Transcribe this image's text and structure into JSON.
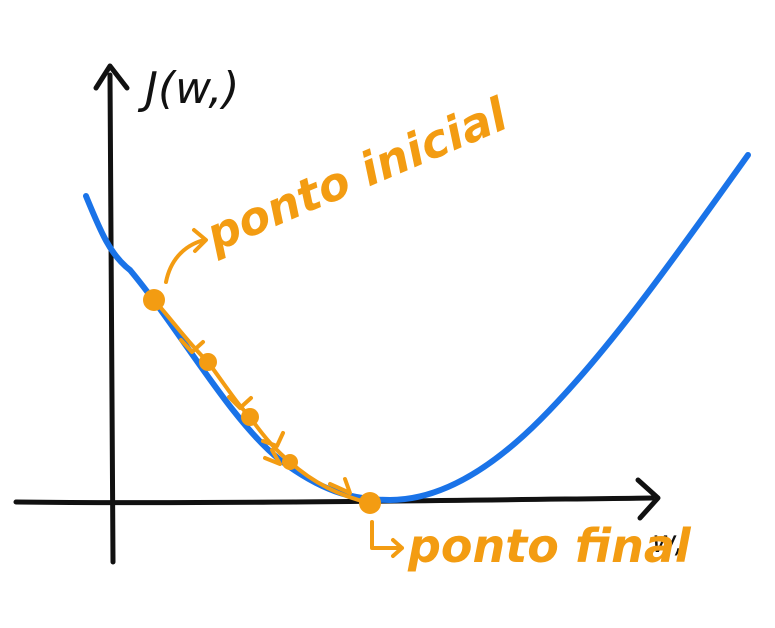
{
  "labels": {
    "y_axis": "J(w,)",
    "x_axis": "w,",
    "start": "ponto inicial",
    "end": "ponto final"
  },
  "colors": {
    "axis": "#111111",
    "curve": "#1a73e8",
    "accent": "#f39c12"
  },
  "curve": {
    "function": "quadratic",
    "minimum_at": "ponto final"
  },
  "descent": {
    "steps": 5
  }
}
